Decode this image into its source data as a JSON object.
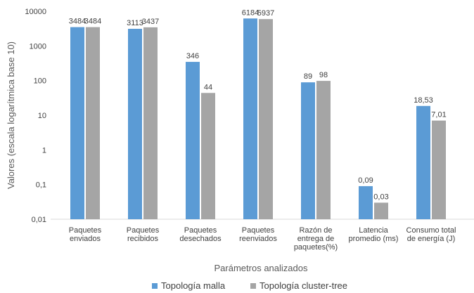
{
  "chart_data": {
    "type": "bar",
    "scale": "log",
    "ylabel": "Valores (escala logarítmica base 10)",
    "xlabel": "Parámetros analizados",
    "yticks": [
      "10000",
      "1000",
      "100",
      "10",
      "1",
      "0,1",
      "0,01"
    ],
    "ylim": [
      0.01,
      10000
    ],
    "grid": false,
    "legend_position": "bottom",
    "categories": [
      [
        "Paquetes",
        "enviados"
      ],
      [
        "Paquetes",
        "recibidos"
      ],
      [
        "Paquetes",
        "desechados"
      ],
      [
        "Paquetes",
        "reenviados"
      ],
      [
        "Razón de",
        "entrega de",
        "paquetes(%)"
      ],
      [
        "Latencia",
        "promedio (ms)"
      ],
      [
        "Consumo total",
        "de energía (J)"
      ]
    ],
    "series": [
      {
        "name": "Topología malla",
        "color": "#5b9bd5",
        "values": [
          3484,
          3113,
          346,
          6184,
          89,
          0.09,
          18.53
        ],
        "labels": [
          "3484",
          "3113",
          "346",
          "6184",
          "89",
          "0,09",
          "18,53"
        ]
      },
      {
        "name": "Topología cluster-tree",
        "color": "#a5a5a5",
        "values": [
          3484,
          3437,
          44,
          5937,
          98,
          0.03,
          7.01
        ],
        "labels": [
          "3484",
          "3437",
          "44",
          "5937",
          "98",
          "0,03",
          "7,01"
        ]
      }
    ]
  }
}
